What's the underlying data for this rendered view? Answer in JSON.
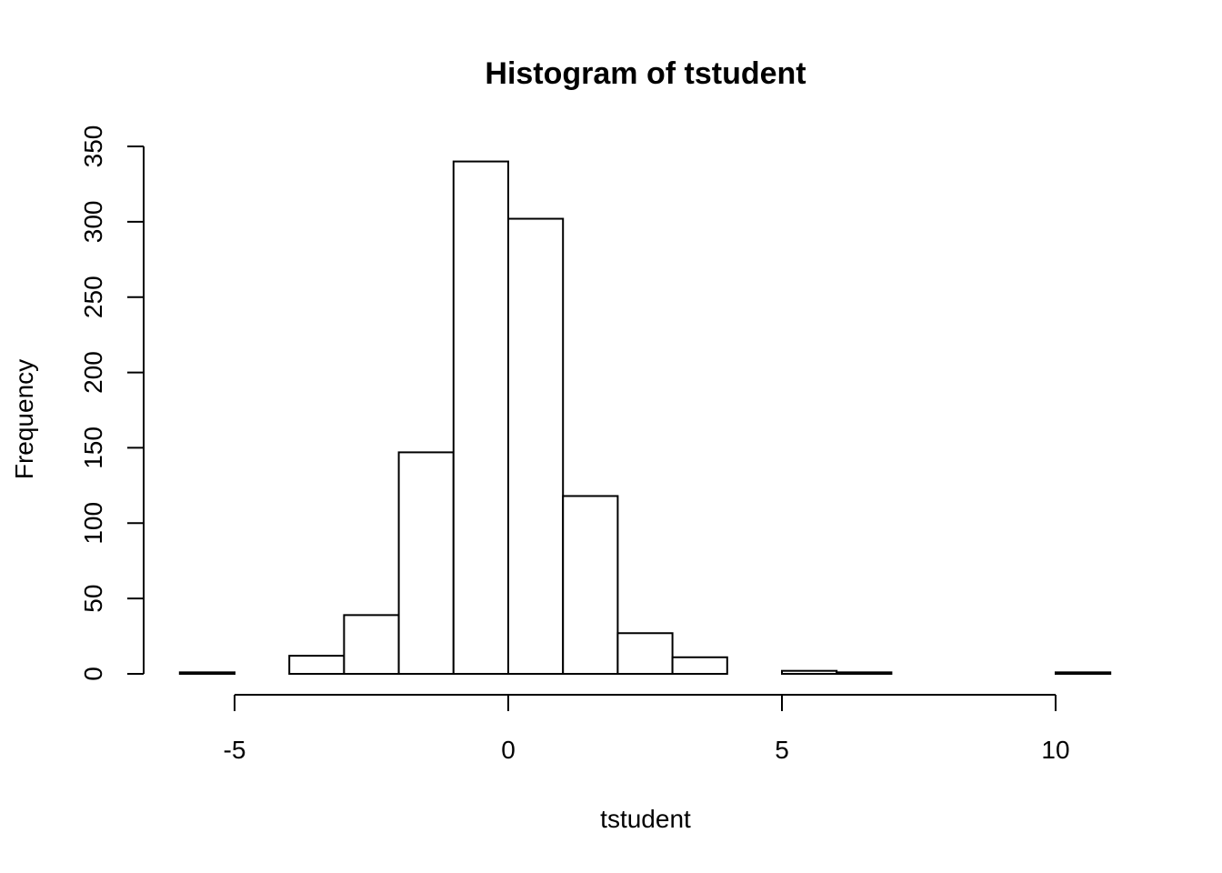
{
  "chart_data": {
    "type": "bar",
    "title": "Histogram of tstudent",
    "xlabel": "tstudent",
    "ylabel": "Frequency",
    "bins": [
      {
        "x0": -6,
        "x1": -5,
        "count": 1
      },
      {
        "x0": -5,
        "x1": -4,
        "count": 0
      },
      {
        "x0": -4,
        "x1": -3,
        "count": 12
      },
      {
        "x0": -3,
        "x1": -2,
        "count": 39
      },
      {
        "x0": -2,
        "x1": -1,
        "count": 147
      },
      {
        "x0": -1,
        "x1": 0,
        "count": 340
      },
      {
        "x0": 0,
        "x1": 1,
        "count": 302
      },
      {
        "x0": 1,
        "x1": 2,
        "count": 118
      },
      {
        "x0": 2,
        "x1": 3,
        "count": 27
      },
      {
        "x0": 3,
        "x1": 4,
        "count": 11
      },
      {
        "x0": 4,
        "x1": 5,
        "count": 0
      },
      {
        "x0": 5,
        "x1": 6,
        "count": 2
      },
      {
        "x0": 6,
        "x1": 7,
        "count": 1
      },
      {
        "x0": 7,
        "x1": 8,
        "count": 0
      },
      {
        "x0": 8,
        "x1": 9,
        "count": 0
      },
      {
        "x0": 9,
        "x1": 10,
        "count": 0
      },
      {
        "x0": 10,
        "x1": 11,
        "count": 1
      }
    ],
    "x_ticks": [
      -5,
      0,
      5,
      10
    ],
    "y_ticks": [
      0,
      50,
      100,
      150,
      200,
      250,
      300,
      350
    ],
    "xlim": [
      -6,
      11
    ],
    "ylim": [
      0,
      350
    ],
    "bar_fill": "#ffffff",
    "bar_stroke": "#000000"
  }
}
